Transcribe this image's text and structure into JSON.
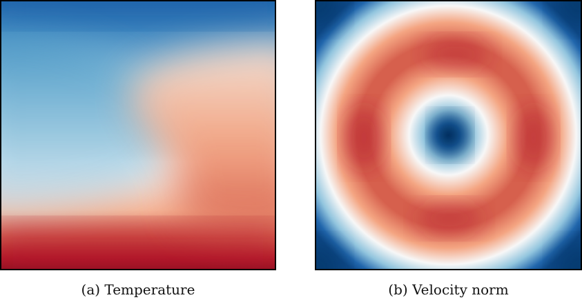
{
  "figures": [
    {
      "caption": "(a) Temperature"
    },
    {
      "caption": "(b) Velocity norm"
    }
  ],
  "colormap": {
    "low": "#053061",
    "mid": "#f7f7f7",
    "high": "#67001f"
  }
}
